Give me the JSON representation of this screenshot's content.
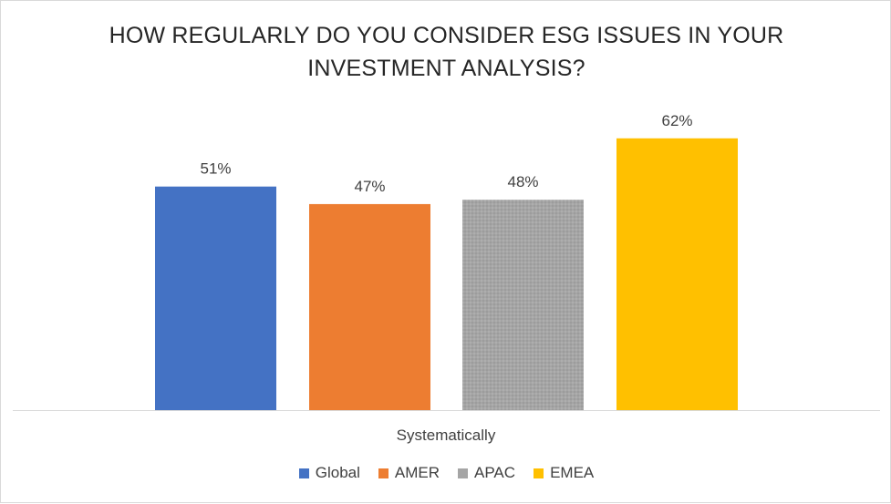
{
  "chart_data": {
    "type": "bar",
    "title_lines": [
      "HOW REGULARLY DO YOU CONSIDER ESG ISSUES IN YOUR",
      "INVESTMENT ANALYSIS?"
    ],
    "title": "HOW REGULARLY DO YOU CONSIDER ESG ISSUES IN YOUR INVESTMENT ANALYSIS?",
    "categories": [
      "Systematically"
    ],
    "series": [
      {
        "name": "Global",
        "values": [
          51
        ],
        "label": "51%",
        "color": "#4472c4"
      },
      {
        "name": "AMER",
        "values": [
          47
        ],
        "label": "47%",
        "color": "#ed7d31"
      },
      {
        "name": "APAC",
        "values": [
          48
        ],
        "label": "48%",
        "color": "#a5a5a5"
      },
      {
        "name": "EMEA",
        "values": [
          62
        ],
        "label": "62%",
        "color": "#ffc000"
      }
    ],
    "unit": "%",
    "ylim": [
      0,
      75
    ],
    "grid": false,
    "legend_position": "bottom"
  }
}
